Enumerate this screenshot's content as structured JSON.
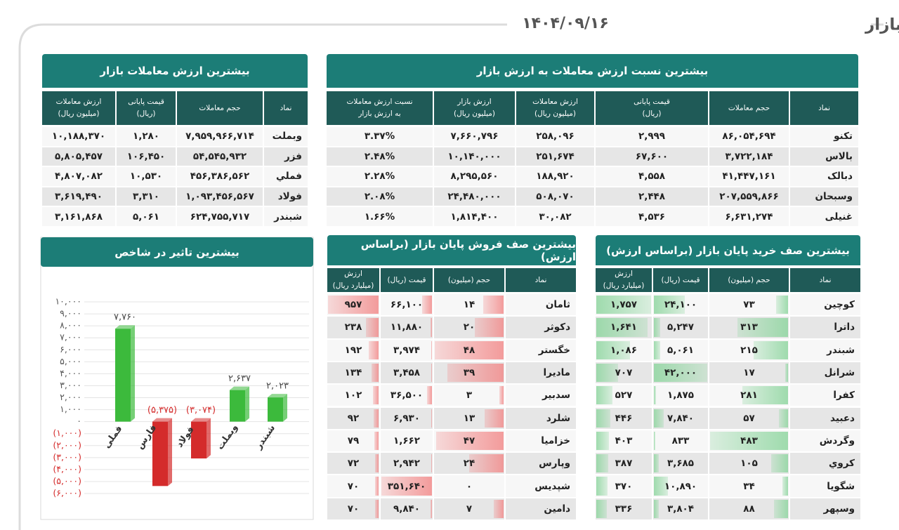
{
  "header": {
    "title": "گزارش عملکرد روزانه بازار",
    "date": "۱۴۰۴/۰۹/۱۶"
  },
  "turnover_ratio": {
    "title": "بیشترین نسبت ارزش معاملات به ارزش بازار",
    "columns": [
      [
        "نماد"
      ],
      [
        "حجم معاملات"
      ],
      [
        "قیمت پایانی",
        "(ریال)"
      ],
      [
        "ارزش معاملات",
        "(میلیون ریال)"
      ],
      [
        "ارزش بازار",
        "(میلیون ریال)"
      ],
      [
        "نسبت ارزش معاملات",
        "به ارزش بازار"
      ]
    ],
    "rows": [
      [
        "تکنو",
        "۸۶,۰۵۴,۶۹۴",
        "۲,۹۹۹",
        "۲۵۸,۰۹۶",
        "۷,۶۶۰,۷۹۶",
        "۳.۳۷%"
      ],
      [
        "بالاس",
        "۳,۷۲۲,۱۸۴",
        "۶۷,۶۰۰",
        "۲۵۱,۶۷۴",
        "۱۰,۱۴۰,۰۰۰",
        "۲.۴۸%"
      ],
      [
        "دبالک",
        "۴۱,۴۴۷,۱۶۱",
        "۴,۵۵۸",
        "۱۸۸,۹۲۰",
        "۸,۲۹۵,۵۶۰",
        "۲.۲۸%"
      ],
      [
        "وسبحان",
        "۲۰۷,۵۵۹,۸۶۶",
        "۲,۴۴۸",
        "۵۰۸,۰۷۰",
        "۲۴,۴۸۰,۰۰۰",
        "۲.۰۸%"
      ],
      [
        "غنیلی",
        "۶,۶۳۱,۲۷۴",
        "۴,۵۳۶",
        "۳۰,۰۸۲",
        "۱,۸۱۴,۴۰۰",
        "۱.۶۶%"
      ]
    ]
  },
  "top_value": {
    "title": "بیشترین ارزش معاملات بازار",
    "columns": [
      [
        "نماد"
      ],
      [
        "حجم معاملات"
      ],
      [
        "قیمت پایانی",
        "(ریال)"
      ],
      [
        "ارزش معاملات",
        "(میلیون ریال)"
      ]
    ],
    "rows": [
      [
        "وبملت",
        "۷,۹۵۹,۹۶۶,۷۱۴",
        "۱,۲۸۰",
        "۱۰,۱۸۸,۳۷۰"
      ],
      [
        "فزر",
        "۵۴,۵۴۵,۹۳۲",
        "۱۰۶,۴۵۰",
        "۵,۸۰۵,۴۵۷"
      ],
      [
        "فملي",
        "۴۵۶,۳۸۶,۵۶۲",
        "۱۰,۵۳۰",
        "۴,۸۰۷,۰۸۲"
      ],
      [
        "فولاد",
        "۱,۰۹۳,۴۵۶,۵۶۷",
        "۳,۳۱۰",
        "۳,۶۱۹,۴۹۰"
      ],
      [
        "شبندر",
        "۶۲۴,۷۵۵,۷۱۷",
        "۵,۰۶۱",
        "۳,۱۶۱,۸۶۸"
      ]
    ]
  },
  "sell_queue": {
    "title": "بیشترین صف فروش پایان بازار (براساس ارزش)",
    "bar_color": "#f28b8b",
    "columns": [
      [
        "نماد"
      ],
      [
        "حجم (میلیون)"
      ],
      [
        "قیمت (ریال)"
      ],
      [
        "ارزش",
        "(میلیارد ریال)"
      ]
    ],
    "rows": [
      [
        "ثامان",
        "۱۴",
        "۶۶,۱۰۰",
        "۹۵۷"
      ],
      [
        "دکوثر",
        "۲۰",
        "۱۱,۸۸۰",
        "۲۳۸"
      ],
      [
        "خگستر",
        "۴۸",
        "۳,۹۷۴",
        "۱۹۲"
      ],
      [
        "ماديرا",
        "۳۹",
        "۳,۴۵۸",
        "۱۳۴"
      ],
      [
        "سدبیر",
        "۳",
        "۳۶,۵۰۰",
        "۱۰۲"
      ],
      [
        "شلرد",
        "۱۳",
        "۶,۹۳۰",
        "۹۲"
      ],
      [
        "خزامیا",
        "۴۷",
        "۱,۶۶۲",
        "۷۹"
      ],
      [
        "وپارس",
        "۲۴",
        "۲,۹۴۲",
        "۷۲"
      ],
      [
        "شپدیس",
        "۰",
        "۳۵۱,۶۴۰",
        "۷۰"
      ],
      [
        "دامین",
        "۷",
        "۹,۸۴۰",
        "۷۰"
      ]
    ]
  },
  "buy_queue": {
    "title": "بیشترین صف خرید پایان بازار (براساس ارزش)",
    "bar_color": "#8fd6a0",
    "columns": [
      [
        "نماد"
      ],
      [
        "حجم (میلیون)"
      ],
      [
        "قیمت (ریال)"
      ],
      [
        "ارزش",
        "(میلیارد ریال)"
      ]
    ],
    "rows": [
      [
        "کوچین",
        "۷۳",
        "۲۴,۱۰۰",
        "۱,۷۵۷"
      ],
      [
        "داترا",
        "۳۱۳",
        "۵,۲۴۷",
        "۱,۶۴۱"
      ],
      [
        "شبندر",
        "۲۱۵",
        "۵,۰۶۱",
        "۱,۰۸۶"
      ],
      [
        "شرانل",
        "۱۷",
        "۴۲,۰۰۰",
        "۷۰۷"
      ],
      [
        "کفرا",
        "۲۸۱",
        "۱,۸۷۵",
        "۵۲۷"
      ],
      [
        "دعبید",
        "۵۷",
        "۷,۸۴۰",
        "۴۴۶"
      ],
      [
        "وگردش",
        "۴۸۳",
        "۸۳۳",
        "۴۰۳"
      ],
      [
        "کروي",
        "۱۰۵",
        "۳,۶۸۵",
        "۳۸۷"
      ],
      [
        "شگويا",
        "۳۴",
        "۱۰,۸۹۰",
        "۳۷۰"
      ],
      [
        "وسپهر",
        "۸۸",
        "۳,۸۰۴",
        "۳۳۶"
      ]
    ]
  },
  "chart_data": {
    "type": "bar",
    "title": "بیشترین تاثیر در شاخص",
    "categories": [
      "فملی",
      "فارس",
      "فولاد",
      "وبملت",
      "شبندر"
    ],
    "values": [
      7760,
      -5375,
      -3074,
      2637,
      2023
    ],
    "value_labels": [
      "۷,۷۶۰",
      "(۵,۳۷۵)",
      "(۳,۰۷۴)",
      "۲,۶۳۷",
      "۲,۰۲۳"
    ],
    "positive_color": "#3cba3c",
    "negative_color": "#d42b2b",
    "ylim": [
      -6000,
      10000
    ],
    "yticks": [
      {
        "value": 10000,
        "label": "۱۰,۰۰۰"
      },
      {
        "value": 9000,
        "label": "۹,۰۰۰"
      },
      {
        "value": 8000,
        "label": "۸,۰۰۰"
      },
      {
        "value": 7000,
        "label": "۷,۰۰۰"
      },
      {
        "value": 6000,
        "label": "۶,۰۰۰"
      },
      {
        "value": 5000,
        "label": "۵,۰۰۰"
      },
      {
        "value": 4000,
        "label": "۴,۰۰۰"
      },
      {
        "value": 3000,
        "label": "۳,۰۰۰"
      },
      {
        "value": 2000,
        "label": "۲,۰۰۰"
      },
      {
        "value": 1000,
        "label": "۱,۰۰۰"
      },
      {
        "value": 0,
        "label": "۰"
      },
      {
        "value": -1000,
        "label": "(۱,۰۰۰)"
      },
      {
        "value": -2000,
        "label": "(۲,۰۰۰)"
      },
      {
        "value": -3000,
        "label": "(۳,۰۰۰)"
      },
      {
        "value": -4000,
        "label": "(۴,۰۰۰)"
      },
      {
        "value": -5000,
        "label": "(۵,۰۰۰)"
      },
      {
        "value": -6000,
        "label": "(۶,۰۰۰)"
      }
    ],
    "grid": true
  }
}
